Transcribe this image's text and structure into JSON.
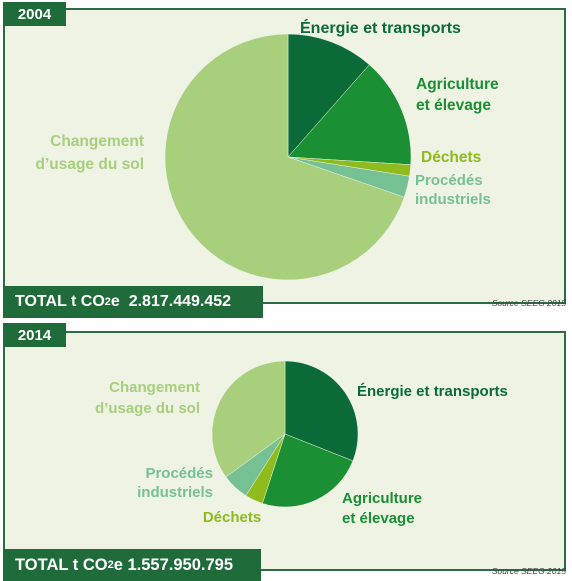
{
  "total_label": "TOTAL  t CO",
  "total_sub": "2",
  "total_unit_tail": "e",
  "chart_data": [
    {
      "type": "pie",
      "title": "2004",
      "total": "2.817.449.452",
      "source": "Source SEEG 2015",
      "slices": [
        {
          "name": "Énergie et transports",
          "lines": [
            "Énergie et transports"
          ],
          "value": 11.5,
          "color": "#0a6b39"
        },
        {
          "name": "Agriculture et élevage",
          "lines": [
            "Agriculture",
            "et élevage"
          ],
          "value": 14.5,
          "color": "#1a8f33"
        },
        {
          "name": "Déchets",
          "lines": [
            "Déchets"
          ],
          "value": 1.5,
          "color": "#8fbb1d"
        },
        {
          "name": "Procédés industriels",
          "lines": [
            "Procédés",
            "industriels"
          ],
          "value": 2.8,
          "color": "#76c194"
        },
        {
          "name": "Changement d’usage du sol",
          "lines": [
            "Changement",
            "d’usage du sol"
          ],
          "value": 69.7,
          "color": "#a7cf7c"
        }
      ]
    },
    {
      "type": "pie",
      "title": "2014",
      "total": "1.557.950.795",
      "source": "Source SEEG 2015",
      "slices": [
        {
          "name": "Énergie et transports",
          "lines": [
            "Énergie et transports"
          ],
          "value": 31,
          "color": "#0a6b39"
        },
        {
          "name": "Agriculture et élevage",
          "lines": [
            "Agriculture",
            "et élevage"
          ],
          "value": 24,
          "color": "#1a8f33"
        },
        {
          "name": "Déchets",
          "lines": [
            "Déchets"
          ],
          "value": 4,
          "color": "#8fbb1d"
        },
        {
          "name": "Procédés industriels",
          "lines": [
            "Procédés",
            "industriels"
          ],
          "value": 6,
          "color": "#76c194"
        },
        {
          "name": "Changement d’usage du sol",
          "lines": [
            "Changement",
            "d’usage du sol"
          ],
          "value": 35,
          "color": "#a7cf7c"
        }
      ]
    }
  ]
}
